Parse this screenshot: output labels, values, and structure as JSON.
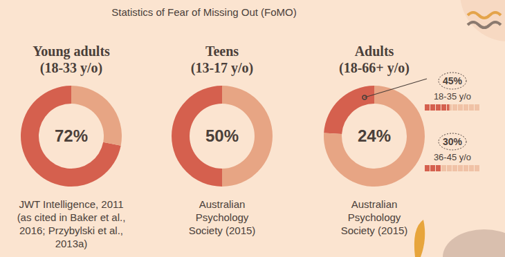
{
  "title": "Statistics of Fear of Missing Out (FoMO)",
  "chart_data": [
    {
      "type": "pie",
      "title": "Young adults",
      "subtitle": "(18-33 y/o)",
      "values": [
        72,
        28
      ],
      "center_label": "72%",
      "colors": [
        "#d5604e",
        "#e7a584"
      ],
      "source": [
        "JWT Intelligence, 2011",
        "(as cited in Baker et al.,",
        "2016; Przybylski et al.,",
        "2013a)"
      ]
    },
    {
      "type": "pie",
      "title": "Teens",
      "subtitle": "(13-17 y/o)",
      "values": [
        50,
        50
      ],
      "center_label": "50%",
      "colors": [
        "#d5604e",
        "#e7a584"
      ],
      "source": [
        "Australian",
        "Psychology",
        "Society (2015)"
      ]
    },
    {
      "type": "pie",
      "title": "Adults",
      "subtitle": "(18-66+ y/o)",
      "values": [
        24,
        76
      ],
      "center_label": "24%",
      "colors": [
        "#d5604e",
        "#e7a584"
      ],
      "source": [
        "Australian",
        "Psychology",
        "Society (2015)"
      ],
      "breakdown": [
        {
          "label": "45%",
          "value": 45,
          "group": "18-35 y/o"
        },
        {
          "label": "30%",
          "value": 30,
          "group": "36-45 y/o"
        }
      ]
    }
  ]
}
